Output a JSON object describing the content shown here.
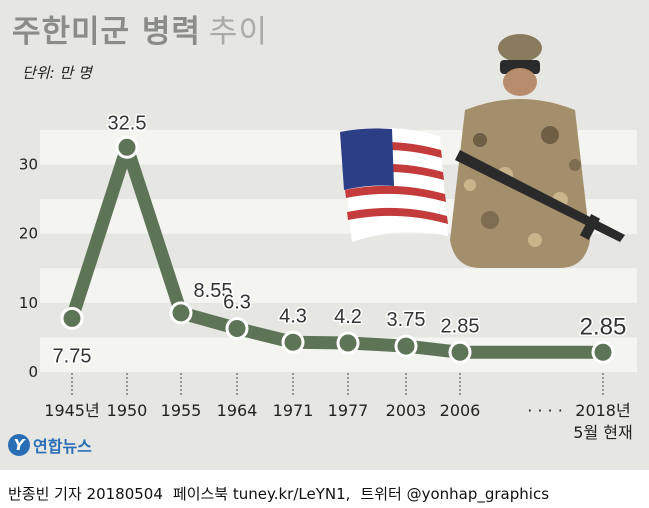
{
  "title": "주한미군 병력",
  "subtitle": "추이",
  "unit_label": "단위: 만 명",
  "chart_data": {
    "type": "line",
    "title": "주한미군 병력 추이",
    "categories": [
      "1945년",
      "1950",
      "1955",
      "1964",
      "1971",
      "1977",
      "2003",
      "2006",
      "· · · ·",
      "2018년\n5월 현재"
    ],
    "series": [
      {
        "values": [
          7.75,
          32.5,
          8.55,
          6.3,
          4.3,
          4.2,
          3.75,
          2.85,
          null,
          2.85
        ]
      }
    ],
    "value_labels": [
      "7.75",
      "32.5",
      "8.55",
      "6.3",
      "4.3",
      "4.2",
      "3.75",
      "2.85",
      "",
      "2.85"
    ],
    "y_ticks": [
      "0",
      "10",
      "20",
      "30"
    ],
    "ylim": [
      0,
      35
    ],
    "grid": "horizontal bands",
    "colors": {
      "line": "#5e7456",
      "band": "#f4f4f1",
      "background": "#e6e6e3"
    }
  },
  "brand": {
    "logo_text": "연합뉴스",
    "logo_icon": "yonhap-logo-icon"
  },
  "credit": {
    "author": "반종빈 기자 20180504",
    "facebook": "페이스북 tuney.kr/LeYN1,",
    "twitter": "트위터 @yonhap_graphics"
  },
  "illustration": {
    "flag": "us-flag-icon",
    "soldier": "soldier-figure"
  }
}
